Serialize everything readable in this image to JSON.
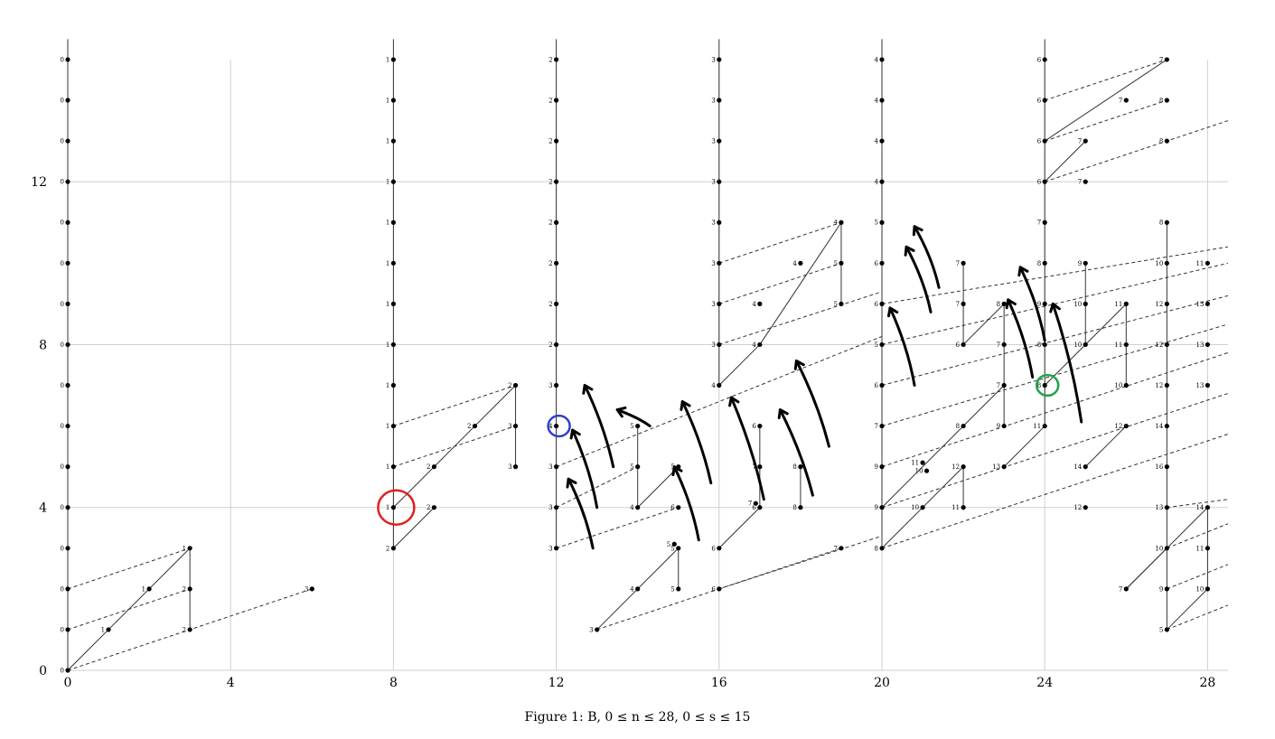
{
  "chart_data": {
    "type": "scatter",
    "title": "",
    "caption": "Figure 1: B,  0 ≤ n ≤ 28,  0 ≤ s ≤ 15",
    "xlabel": "",
    "ylabel": "",
    "xlim": [
      0,
      28.5
    ],
    "ylim": [
      0,
      15
    ],
    "x_ticks": [
      "0",
      "4",
      "8",
      "12",
      "16",
      "20",
      "24",
      "28"
    ],
    "y_ticks": [
      "0",
      "4",
      "8",
      "12"
    ],
    "grid": true,
    "points": [
      {
        "x": 0,
        "y": 0,
        "label": "0"
      },
      {
        "x": 0,
        "y": 1,
        "label": "0"
      },
      {
        "x": 0,
        "y": 2,
        "label": "0"
      },
      {
        "x": 0,
        "y": 3,
        "label": "0"
      },
      {
        "x": 0,
        "y": 4,
        "label": "0"
      },
      {
        "x": 0,
        "y": 5,
        "label": "0"
      },
      {
        "x": 0,
        "y": 6,
        "label": "0"
      },
      {
        "x": 0,
        "y": 7,
        "label": "0"
      },
      {
        "x": 0,
        "y": 8,
        "label": "0"
      },
      {
        "x": 0,
        "y": 9,
        "label": "0"
      },
      {
        "x": 0,
        "y": 10,
        "label": "0"
      },
      {
        "x": 0,
        "y": 11,
        "label": "0"
      },
      {
        "x": 0,
        "y": 12,
        "label": "0"
      },
      {
        "x": 0,
        "y": 13,
        "label": "0"
      },
      {
        "x": 0,
        "y": 14,
        "label": "0"
      },
      {
        "x": 0,
        "y": 15,
        "label": "0"
      },
      {
        "x": 1,
        "y": 1,
        "label": "1"
      },
      {
        "x": 2,
        "y": 2,
        "label": "1"
      },
      {
        "x": 3,
        "y": 3,
        "label": "1"
      },
      {
        "x": 3,
        "y": 2,
        "label": "2"
      },
      {
        "x": 3,
        "y": 1,
        "label": "2"
      },
      {
        "x": 6,
        "y": 2,
        "label": "3"
      },
      {
        "x": 8,
        "y": 3,
        "label": "2"
      },
      {
        "x": 8,
        "y": 4,
        "label": "1"
      },
      {
        "x": 8,
        "y": 5,
        "label": "1"
      },
      {
        "x": 8,
        "y": 6,
        "label": "1"
      },
      {
        "x": 8,
        "y": 7,
        "label": "1"
      },
      {
        "x": 8,
        "y": 8,
        "label": "1"
      },
      {
        "x": 8,
        "y": 9,
        "label": "1"
      },
      {
        "x": 8,
        "y": 10,
        "label": "1"
      },
      {
        "x": 8,
        "y": 11,
        "label": "1"
      },
      {
        "x": 8,
        "y": 12,
        "label": "1"
      },
      {
        "x": 8,
        "y": 13,
        "label": "1"
      },
      {
        "x": 8,
        "y": 14,
        "label": "1"
      },
      {
        "x": 8,
        "y": 15,
        "label": "1"
      },
      {
        "x": 9,
        "y": 4,
        "label": "2"
      },
      {
        "x": 9,
        "y": 5,
        "label": "2"
      },
      {
        "x": 10,
        "y": 6,
        "label": "2"
      },
      {
        "x": 11,
        "y": 7,
        "label": "2"
      },
      {
        "x": 11,
        "y": 6,
        "label": "3"
      },
      {
        "x": 11,
        "y": 5,
        "label": "3"
      },
      {
        "x": 12,
        "y": 3,
        "label": "3"
      },
      {
        "x": 12,
        "y": 4,
        "label": "3"
      },
      {
        "x": 12,
        "y": 5,
        "label": "3"
      },
      {
        "x": 12,
        "y": 6,
        "label": "4"
      },
      {
        "x": 12,
        "y": 7,
        "label": "3"
      },
      {
        "x": 12,
        "y": 8,
        "label": "2"
      },
      {
        "x": 12,
        "y": 9,
        "label": "2"
      },
      {
        "x": 12,
        "y": 10,
        "label": "2"
      },
      {
        "x": 12,
        "y": 11,
        "label": "2"
      },
      {
        "x": 12,
        "y": 12,
        "label": "2"
      },
      {
        "x": 12,
        "y": 13,
        "label": "2"
      },
      {
        "x": 12,
        "y": 14,
        "label": "2"
      },
      {
        "x": 12,
        "y": 15,
        "label": "2"
      },
      {
        "x": 13,
        "y": 1,
        "label": "3"
      },
      {
        "x": 14,
        "y": 2,
        "label": "4"
      },
      {
        "x": 14,
        "y": 4,
        "label": "4"
      },
      {
        "x": 14,
        "y": 5,
        "label": "5"
      },
      {
        "x": 14,
        "y": 6,
        "label": "5"
      },
      {
        "x": 15,
        "y": 2,
        "label": "5"
      },
      {
        "x": 14.9,
        "y": 3.1,
        "label": "5"
      },
      {
        "x": 15,
        "y": 3,
        "label": "5"
      },
      {
        "x": 15,
        "y": 4,
        "label": "6"
      },
      {
        "x": 15,
        "y": 5,
        "label": "5"
      },
      {
        "x": 16,
        "y": 2,
        "label": "6"
      },
      {
        "x": 16,
        "y": 3,
        "label": "6"
      },
      {
        "x": 16,
        "y": 7,
        "label": "4"
      },
      {
        "x": 16,
        "y": 8,
        "label": "3"
      },
      {
        "x": 16,
        "y": 9,
        "label": "3"
      },
      {
        "x": 16,
        "y": 10,
        "label": "3"
      },
      {
        "x": 16,
        "y": 11,
        "label": "3"
      },
      {
        "x": 16,
        "y": 12,
        "label": "3"
      },
      {
        "x": 16,
        "y": 13,
        "label": "3"
      },
      {
        "x": 16,
        "y": 14,
        "label": "3"
      },
      {
        "x": 16,
        "y": 15,
        "label": "3"
      },
      {
        "x": 17,
        "y": 4,
        "label": "6"
      },
      {
        "x": 17,
        "y": 5,
        "label": "7"
      },
      {
        "x": 17,
        "y": 6,
        "label": "6"
      },
      {
        "x": 17,
        "y": 8,
        "label": "4"
      },
      {
        "x": 17,
        "y": 9,
        "label": "4"
      },
      {
        "x": 16.9,
        "y": 4.1,
        "label": "7"
      },
      {
        "x": 18,
        "y": 4,
        "label": "8"
      },
      {
        "x": 18,
        "y": 5,
        "label": "8"
      },
      {
        "x": 18,
        "y": 10,
        "label": "4"
      },
      {
        "x": 19,
        "y": 3,
        "label": "7"
      },
      {
        "x": 19,
        "y": 9,
        "label": "5"
      },
      {
        "x": 19,
        "y": 10,
        "label": "5"
      },
      {
        "x": 19,
        "y": 11,
        "label": "4"
      },
      {
        "x": 20,
        "y": 3,
        "label": "8"
      },
      {
        "x": 20,
        "y": 4,
        "label": "9"
      },
      {
        "x": 20,
        "y": 5,
        "label": "9"
      },
      {
        "x": 20,
        "y": 6,
        "label": "7"
      },
      {
        "x": 20,
        "y": 7,
        "label": "6"
      },
      {
        "x": 20,
        "y": 8,
        "label": "5"
      },
      {
        "x": 20,
        "y": 9,
        "label": "6"
      },
      {
        "x": 20,
        "y": 10,
        "label": "6"
      },
      {
        "x": 20,
        "y": 11,
        "label": "5"
      },
      {
        "x": 20,
        "y": 12,
        "label": "4"
      },
      {
        "x": 20,
        "y": 13,
        "label": "4"
      },
      {
        "x": 20,
        "y": 14,
        "label": "4"
      },
      {
        "x": 20,
        "y": 15,
        "label": "4"
      },
      {
        "x": 21,
        "y": 4,
        "label": "10"
      },
      {
        "x": 21,
        "y": 5.1,
        "label": "11"
      },
      {
        "x": 21.1,
        "y": 4.9,
        "label": "10"
      },
      {
        "x": 22,
        "y": 4,
        "label": "11"
      },
      {
        "x": 22,
        "y": 5,
        "label": "12"
      },
      {
        "x": 22,
        "y": 6,
        "label": "8"
      },
      {
        "x": 22,
        "y": 8,
        "label": "6"
      },
      {
        "x": 22,
        "y": 9,
        "label": "7"
      },
      {
        "x": 22,
        "y": 10,
        "label": "7"
      },
      {
        "x": 23,
        "y": 5,
        "label": "13"
      },
      {
        "x": 23,
        "y": 6,
        "label": "9"
      },
      {
        "x": 23,
        "y": 7,
        "label": "7"
      },
      {
        "x": 23,
        "y": 8,
        "label": "7"
      },
      {
        "x": 23,
        "y": 9,
        "label": "8"
      },
      {
        "x": 24,
        "y": 6,
        "label": "11"
      },
      {
        "x": 24,
        "y": 7,
        "label": "8"
      },
      {
        "x": 24,
        "y": 8,
        "label": "8"
      },
      {
        "x": 24,
        "y": 9,
        "label": "9"
      },
      {
        "x": 24,
        "y": 10,
        "label": "8"
      },
      {
        "x": 24,
        "y": 11,
        "label": "7"
      },
      {
        "x": 24,
        "y": 12,
        "label": "6"
      },
      {
        "x": 24,
        "y": 13,
        "label": "6"
      },
      {
        "x": 24,
        "y": 14,
        "label": "6"
      },
      {
        "x": 24,
        "y": 15,
        "label": "6"
      },
      {
        "x": 25,
        "y": 4,
        "label": "12"
      },
      {
        "x": 25,
        "y": 5,
        "label": "14"
      },
      {
        "x": 25,
        "y": 8,
        "label": "10"
      },
      {
        "x": 25,
        "y": 9,
        "label": "10"
      },
      {
        "x": 25,
        "y": 10,
        "label": "9"
      },
      {
        "x": 25,
        "y": 12,
        "label": "7"
      },
      {
        "x": 25,
        "y": 13,
        "label": "7"
      },
      {
        "x": 26,
        "y": 2,
        "label": "7"
      },
      {
        "x": 26,
        "y": 6,
        "label": "12"
      },
      {
        "x": 26,
        "y": 7,
        "label": "10"
      },
      {
        "x": 26,
        "y": 8,
        "label": "11"
      },
      {
        "x": 26,
        "y": 9,
        "label": "11"
      },
      {
        "x": 26,
        "y": 14,
        "label": "7"
      },
      {
        "x": 27,
        "y": 1,
        "label": "5"
      },
      {
        "x": 27,
        "y": 2,
        "label": "9"
      },
      {
        "x": 27,
        "y": 3,
        "label": "10"
      },
      {
        "x": 27,
        "y": 4,
        "label": "13"
      },
      {
        "x": 27,
        "y": 5,
        "label": "16"
      },
      {
        "x": 27,
        "y": 6,
        "label": "14"
      },
      {
        "x": 27,
        "y": 7,
        "label": "12"
      },
      {
        "x": 27,
        "y": 8,
        "label": "12"
      },
      {
        "x": 27,
        "y": 9,
        "label": "12"
      },
      {
        "x": 27,
        "y": 10,
        "label": "10"
      },
      {
        "x": 27,
        "y": 11,
        "label": "8"
      },
      {
        "x": 27,
        "y": 13,
        "label": "8"
      },
      {
        "x": 27,
        "y": 14,
        "label": "8"
      },
      {
        "x": 27,
        "y": 15,
        "label": "7"
      },
      {
        "x": 28,
        "y": 2,
        "label": "10"
      },
      {
        "x": 28,
        "y": 3,
        "label": "11"
      },
      {
        "x": 28,
        "y": 4,
        "label": "14"
      },
      {
        "x": 28,
        "y": 7,
        "label": "13"
      },
      {
        "x": 28,
        "y": 8,
        "label": "13"
      },
      {
        "x": 28,
        "y": 9,
        "label": "13"
      },
      {
        "x": 28,
        "y": 10,
        "label": "11"
      }
    ],
    "annotations": [
      {
        "shape": "circle",
        "color": "#e02020",
        "x": 8,
        "y": 4
      },
      {
        "shape": "circle",
        "color": "#2f3fc8",
        "x": 12,
        "y": 6
      },
      {
        "shape": "circle",
        "color": "#23a34a",
        "x": 24,
        "y": 7
      },
      {
        "shape": "arrow",
        "color": "#000000",
        "x1": 12.9,
        "y1": 3,
        "x2": 12.3,
        "y2": 4.7
      },
      {
        "shape": "arrow",
        "color": "#000000",
        "x1": 13,
        "y1": 4,
        "x2": 12.4,
        "y2": 5.9
      },
      {
        "shape": "arrow",
        "color": "#000000",
        "x1": 13.4,
        "y1": 5,
        "x2": 12.7,
        "y2": 7
      },
      {
        "shape": "arrow",
        "color": "#000000",
        "x1": 14.3,
        "y1": 6,
        "x2": 13.5,
        "y2": 6.4
      },
      {
        "shape": "arrow",
        "color": "#000000",
        "x1": 15.5,
        "y1": 3.2,
        "x2": 14.9,
        "y2": 5.0
      },
      {
        "shape": "arrow",
        "color": "#000000",
        "x1": 15.8,
        "y1": 4.6,
        "x2": 15.1,
        "y2": 6.6
      },
      {
        "shape": "arrow",
        "color": "#000000",
        "x1": 17.1,
        "y1": 4.2,
        "x2": 16.3,
        "y2": 6.7
      },
      {
        "shape": "arrow",
        "color": "#000000",
        "x1": 18.3,
        "y1": 4.3,
        "x2": 17.5,
        "y2": 6.4
      },
      {
        "shape": "arrow",
        "color": "#000000",
        "x1": 18.7,
        "y1": 5.5,
        "x2": 17.9,
        "y2": 7.6
      },
      {
        "shape": "arrow",
        "color": "#000000",
        "x1": 20.8,
        "y1": 7,
        "x2": 20.2,
        "y2": 8.9
      },
      {
        "shape": "arrow",
        "color": "#000000",
        "x1": 21.2,
        "y1": 8.8,
        "x2": 20.6,
        "y2": 10.4
      },
      {
        "shape": "arrow",
        "color": "#000000",
        "x1": 21.4,
        "y1": 9.4,
        "x2": 20.8,
        "y2": 10.9
      },
      {
        "shape": "arrow",
        "color": "#000000",
        "x1": 23.7,
        "y1": 7.2,
        "x2": 23.1,
        "y2": 9.1
      },
      {
        "shape": "arrow",
        "color": "#000000",
        "x1": 24.0,
        "y1": 8.1,
        "x2": 23.4,
        "y2": 9.9
      },
      {
        "shape": "arrow",
        "color": "#000000",
        "x1": 24.9,
        "y1": 6.1,
        "x2": 24.2,
        "y2": 9.0
      }
    ]
  }
}
